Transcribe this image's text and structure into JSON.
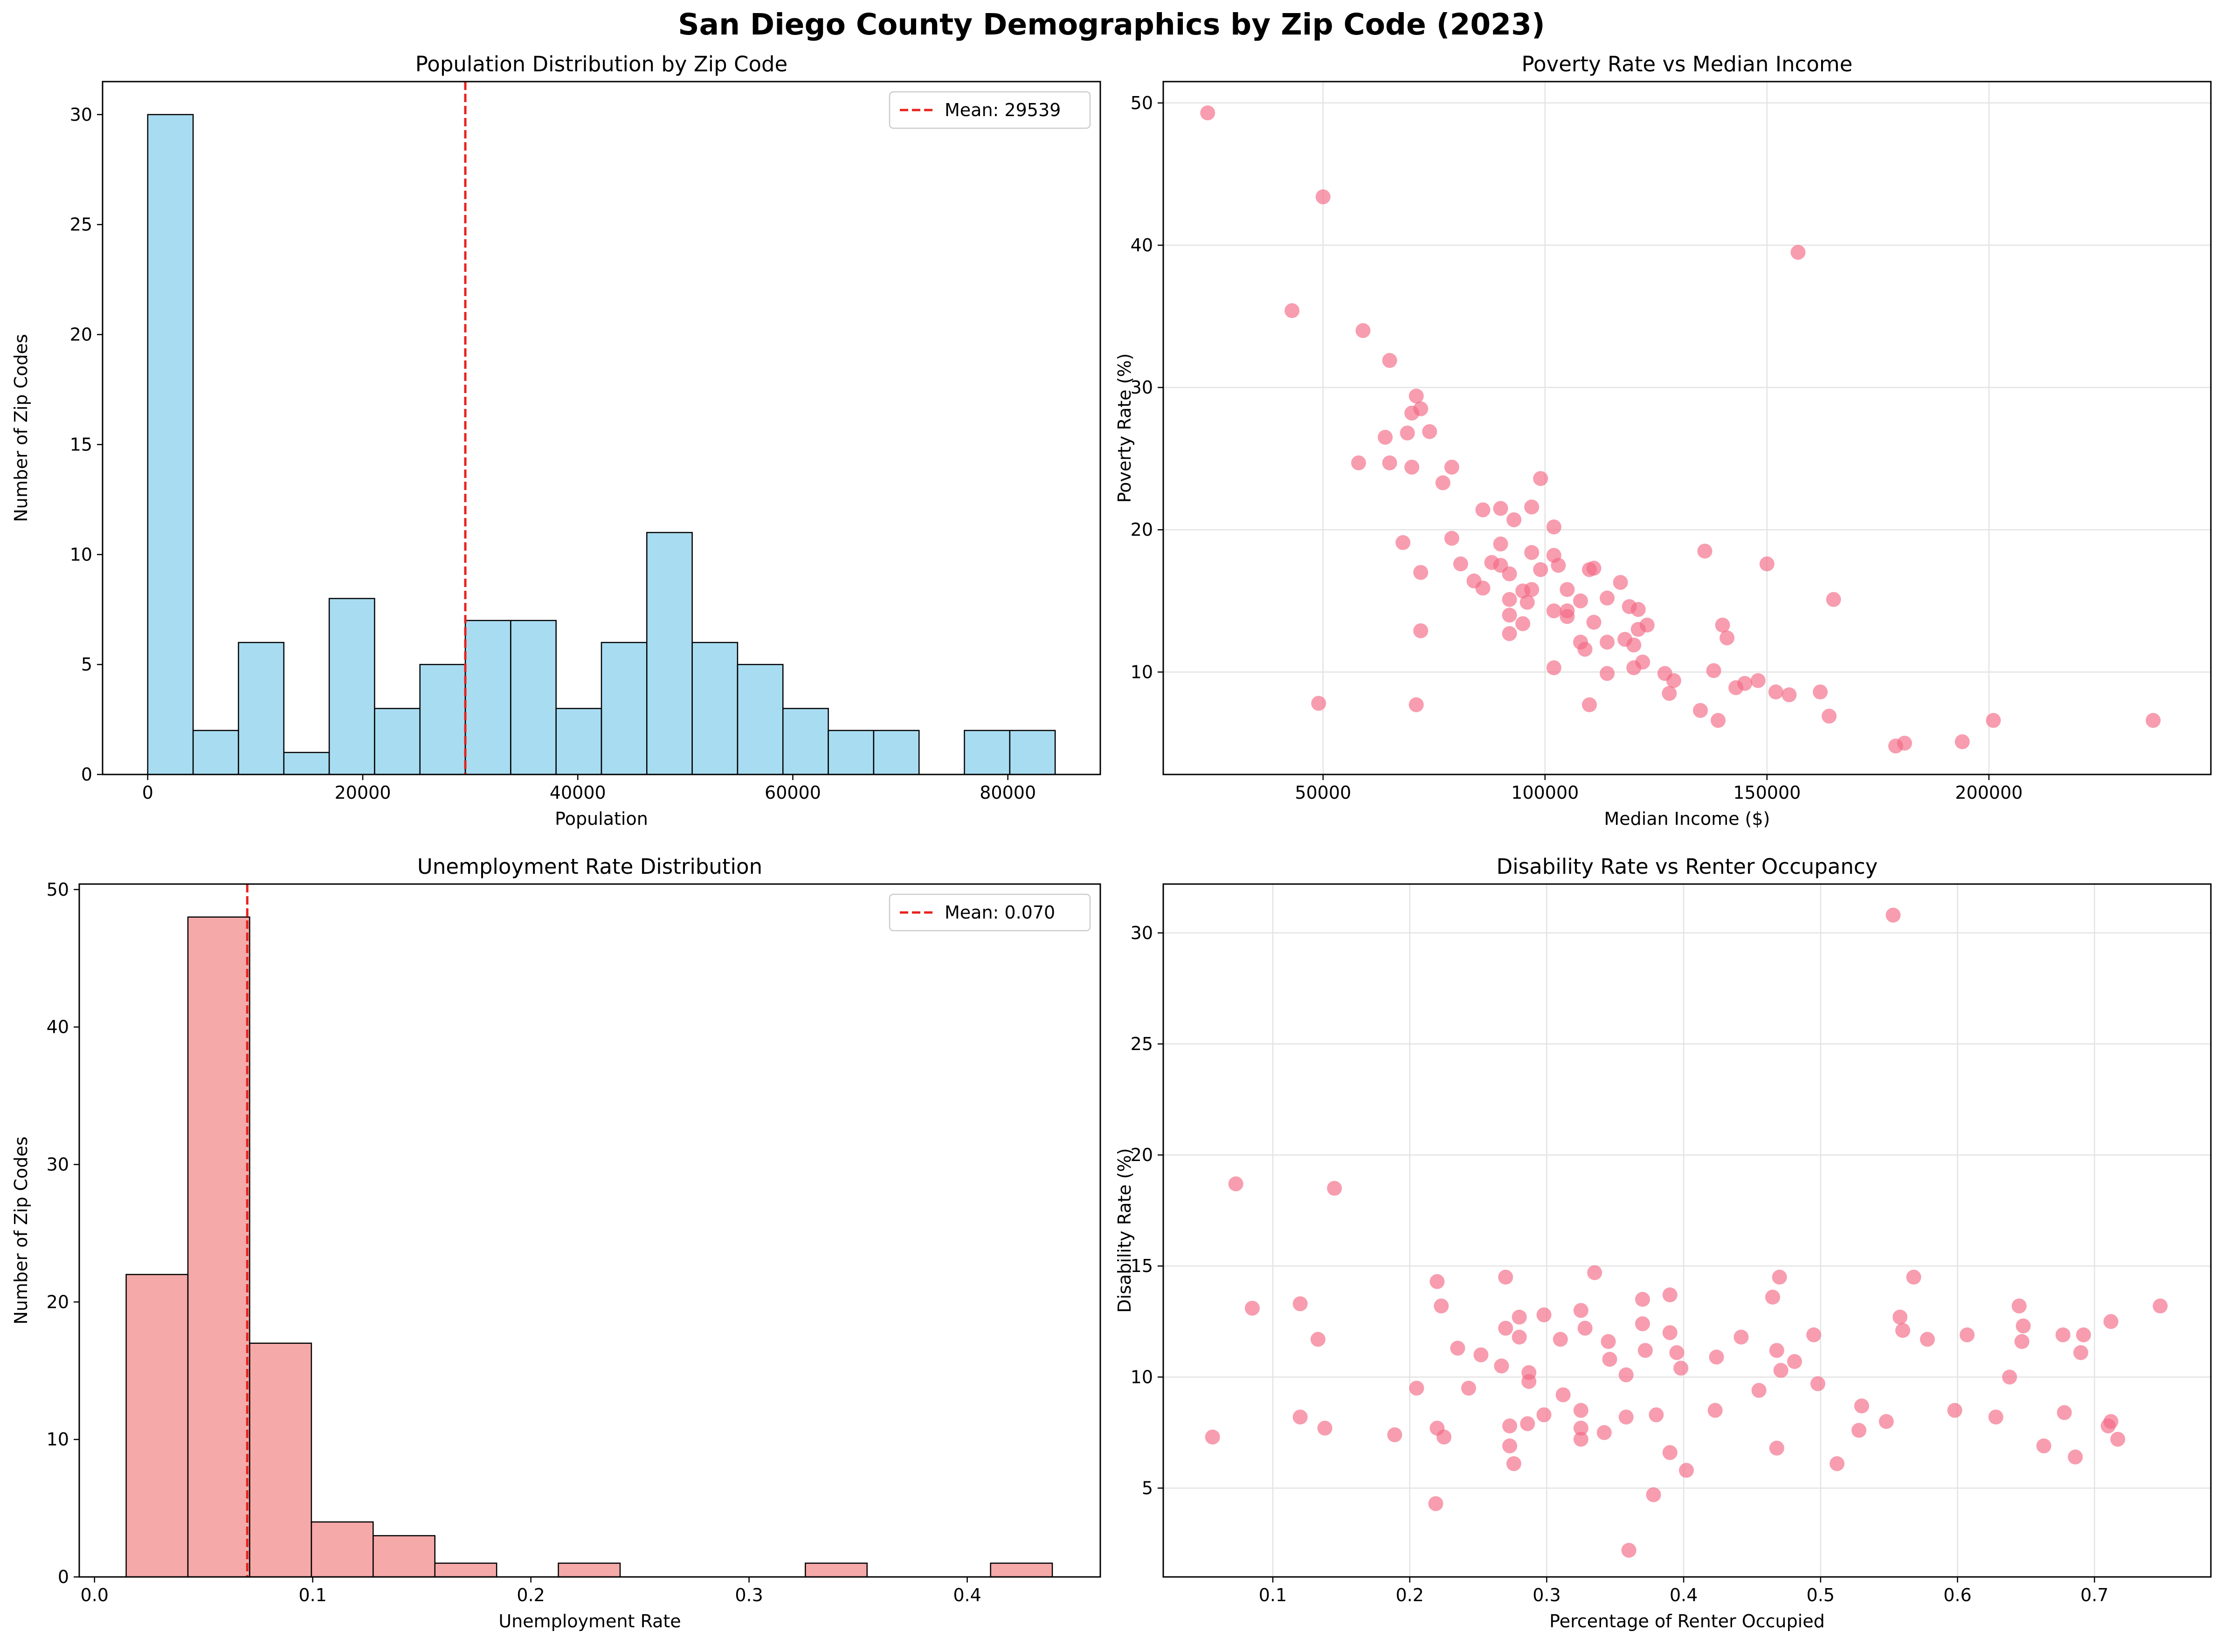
{
  "figure": {
    "title": "San Diego County Demographics by Zip Code (2023)"
  },
  "colors": {
    "hist_population": "#87CEEB",
    "hist_unemployment": "#F08080",
    "scatter_points": "#F26884",
    "mean_line": "#E8221E",
    "bar_edge": "#000000",
    "grid": "#E3E3E3"
  },
  "chart_data": [
    {
      "type": "bar",
      "title": "Population Distribution by Zip Code",
      "xlabel": "Population",
      "ylabel": "Number of Zip Codes",
      "xlim": [
        -4200,
        88600
      ],
      "ylim": [
        0,
        31.5
      ],
      "xticks": [
        0,
        20000,
        40000,
        60000,
        80000
      ],
      "yticks": [
        0,
        5,
        10,
        15,
        20,
        25,
        30
      ],
      "bins": [
        [
          0,
          4220
        ],
        [
          4220,
          8440
        ],
        [
          8440,
          12660
        ],
        [
          12660,
          16880
        ],
        [
          16880,
          21100
        ],
        [
          21100,
          25320
        ],
        [
          25320,
          29540
        ],
        [
          29540,
          33760
        ],
        [
          33760,
          37980
        ],
        [
          37980,
          42200
        ],
        [
          42200,
          46420
        ],
        [
          46420,
          50640
        ],
        [
          50640,
          54860
        ],
        [
          54860,
          59080
        ],
        [
          59080,
          63300
        ],
        [
          63300,
          67520
        ],
        [
          67520,
          71740
        ],
        [
          71740,
          75960
        ],
        [
          75960,
          80180
        ],
        [
          80180,
          84400
        ]
      ],
      "values": [
        30,
        2,
        6,
        1,
        8,
        3,
        5,
        7,
        7,
        3,
        6,
        11,
        6,
        5,
        3,
        2,
        2,
        0,
        2,
        2
      ],
      "mean": 29539,
      "legend": "Mean: 29539",
      "legend_position": "upper right",
      "grid": false
    },
    {
      "type": "scatter",
      "title": "Poverty Rate vs Median Income",
      "xlabel": "Median Income ($)",
      "ylabel": "Poverty Rate (%)",
      "xlim": [
        14000,
        250000
      ],
      "ylim": [
        2.8,
        51.5
      ],
      "xticks": [
        50000,
        100000,
        150000,
        200000
      ],
      "yticks": [
        10,
        20,
        30,
        40,
        50
      ],
      "grid": true,
      "points": [
        [
          24000,
          49.3
        ],
        [
          50000,
          43.4
        ],
        [
          157000,
          39.5
        ],
        [
          43000,
          35.4
        ],
        [
          59000,
          34
        ],
        [
          65000,
          31.9
        ],
        [
          71000,
          29.4
        ],
        [
          72000,
          28.5
        ],
        [
          70000,
          28.2
        ],
        [
          64000,
          26.5
        ],
        [
          69000,
          26.8
        ],
        [
          74000,
          26.9
        ],
        [
          58000,
          24.7
        ],
        [
          65000,
          24.7
        ],
        [
          70000,
          24.4
        ],
        [
          79000,
          24.4
        ],
        [
          99000,
          23.6
        ],
        [
          77000,
          23.3
        ],
        [
          86000,
          21.4
        ],
        [
          90000,
          21.5
        ],
        [
          97000,
          21.6
        ],
        [
          93000,
          20.7
        ],
        [
          102000,
          20.2
        ],
        [
          79000,
          19.4
        ],
        [
          68000,
          19.1
        ],
        [
          90000,
          19
        ],
        [
          97000,
          18.4
        ],
        [
          102000,
          18.2
        ],
        [
          136000,
          18.5
        ],
        [
          81000,
          17.6
        ],
        [
          88000,
          17.7
        ],
        [
          90000,
          17.5
        ],
        [
          103000,
          17.5
        ],
        [
          111000,
          17.3
        ],
        [
          110000,
          17.2
        ],
        [
          150000,
          17.6
        ],
        [
          72000,
          17
        ],
        [
          92000,
          16.9
        ],
        [
          99000,
          17.2
        ],
        [
          84000,
          16.4
        ],
        [
          117000,
          16.3
        ],
        [
          86000,
          15.9
        ],
        [
          95000,
          15.7
        ],
        [
          97000,
          15.8
        ],
        [
          105000,
          15.8
        ],
        [
          114000,
          15.2
        ],
        [
          92000,
          15.1
        ],
        [
          96000,
          14.9
        ],
        [
          108000,
          15
        ],
        [
          165000,
          15.1
        ],
        [
          119000,
          14.6
        ],
        [
          121000,
          14.4
        ],
        [
          102000,
          14.3
        ],
        [
          105000,
          14.3
        ],
        [
          92000,
          14
        ],
        [
          105000,
          13.9
        ],
        [
          111000,
          13.5
        ],
        [
          95000,
          13.4
        ],
        [
          123000,
          13.3
        ],
        [
          140000,
          13.3
        ],
        [
          72000,
          12.9
        ],
        [
          121000,
          13
        ],
        [
          92000,
          12.7
        ],
        [
          118000,
          12.3
        ],
        [
          108000,
          12.1
        ],
        [
          114000,
          12.1
        ],
        [
          141000,
          12.4
        ],
        [
          109000,
          11.6
        ],
        [
          120000,
          11.9
        ],
        [
          122000,
          10.7
        ],
        [
          102000,
          10.3
        ],
        [
          120000,
          10.3
        ],
        [
          114000,
          9.9
        ],
        [
          127000,
          9.9
        ],
        [
          138000,
          10.1
        ],
        [
          129000,
          9.4
        ],
        [
          148000,
          9.4
        ],
        [
          145000,
          9.2
        ],
        [
          143000,
          8.9
        ],
        [
          152000,
          8.6
        ],
        [
          155000,
          8.4
        ],
        [
          128000,
          8.5
        ],
        [
          162000,
          8.6
        ],
        [
          49000,
          7.8
        ],
        [
          71000,
          7.7
        ],
        [
          110000,
          7.7
        ],
        [
          135000,
          7.3
        ],
        [
          139000,
          6.6
        ],
        [
          164000,
          6.9
        ],
        [
          179000,
          4.8
        ],
        [
          181000,
          5
        ],
        [
          194000,
          5.1
        ],
        [
          201000,
          6.6
        ],
        [
          237000,
          6.6
        ]
      ]
    },
    {
      "type": "bar",
      "title": "Unemployment Rate Distribution",
      "xlabel": "Unemployment Rate",
      "ylabel": "Number of Zip Codes",
      "xlim": [
        -0.007,
        0.461
      ],
      "ylim": [
        0,
        50.4
      ],
      "xticks": [
        0.0,
        0.1,
        0.2,
        0.3,
        0.4
      ],
      "xtick_labels": [
        "0.0",
        "0.1",
        "0.2",
        "0.3",
        "0.4"
      ],
      "yticks": [
        0,
        10,
        20,
        30,
        40,
        50
      ],
      "bins": [
        [
          0.0145,
          0.0428
        ],
        [
          0.0428,
          0.0711
        ],
        [
          0.0711,
          0.0994
        ],
        [
          0.0994,
          0.1277
        ],
        [
          0.1277,
          0.156
        ],
        [
          0.156,
          0.1843
        ],
        [
          0.1843,
          0.2126
        ],
        [
          0.2126,
          0.2409
        ],
        [
          0.2409,
          0.2692
        ],
        [
          0.2692,
          0.2975
        ],
        [
          0.2975,
          0.3258
        ],
        [
          0.3258,
          0.3541
        ],
        [
          0.3541,
          0.3824
        ],
        [
          0.3824,
          0.4107
        ],
        [
          0.4107,
          0.439
        ]
      ],
      "values": [
        22,
        48,
        17,
        4,
        3,
        1,
        0,
        1,
        0,
        0,
        0,
        1,
        0,
        0,
        1
      ],
      "mean": 0.07,
      "legend": "Mean: 0.070",
      "legend_position": "upper right",
      "grid": false
    },
    {
      "type": "scatter",
      "title": "Disability Rate vs Renter Occupancy",
      "xlabel": "Percentage of Renter Occupied",
      "ylabel": "Disability Rate (%)",
      "xlim": [
        0.02,
        0.785
      ],
      "ylim": [
        1.0,
        32.2
      ],
      "xticks": [
        0.1,
        0.2,
        0.3,
        0.4,
        0.5,
        0.6,
        0.7
      ],
      "xtick_labels": [
        "0.1",
        "0.2",
        "0.3",
        "0.4",
        "0.5",
        "0.6",
        "0.7"
      ],
      "yticks": [
        5,
        10,
        15,
        20,
        25,
        30
      ],
      "grid": true,
      "points": [
        [
          0.553,
          30.8
        ],
        [
          0.073,
          18.7
        ],
        [
          0.145,
          18.5
        ],
        [
          0.335,
          14.7
        ],
        [
          0.27,
          14.5
        ],
        [
          0.47,
          14.5
        ],
        [
          0.568,
          14.5
        ],
        [
          0.22,
          14.3
        ],
        [
          0.465,
          13.6
        ],
        [
          0.37,
          13.5
        ],
        [
          0.39,
          13.7
        ],
        [
          0.12,
          13.3
        ],
        [
          0.085,
          13.1
        ],
        [
          0.223,
          13.2
        ],
        [
          0.325,
          13.0
        ],
        [
          0.645,
          13.2
        ],
        [
          0.748,
          13.2
        ],
        [
          0.28,
          12.7
        ],
        [
          0.298,
          12.8
        ],
        [
          0.558,
          12.7
        ],
        [
          0.712,
          12.5
        ],
        [
          0.27,
          12.2
        ],
        [
          0.328,
          12.2
        ],
        [
          0.37,
          12.4
        ],
        [
          0.56,
          12.1
        ],
        [
          0.648,
          12.3
        ],
        [
          0.133,
          11.7
        ],
        [
          0.28,
          11.8
        ],
        [
          0.31,
          11.7
        ],
        [
          0.345,
          11.6
        ],
        [
          0.39,
          12.0
        ],
        [
          0.442,
          11.8
        ],
        [
          0.495,
          11.9
        ],
        [
          0.578,
          11.7
        ],
        [
          0.607,
          11.9
        ],
        [
          0.647,
          11.6
        ],
        [
          0.677,
          11.9
        ],
        [
          0.692,
          11.9
        ],
        [
          0.235,
          11.3
        ],
        [
          0.252,
          11.0
        ],
        [
          0.372,
          11.2
        ],
        [
          0.395,
          11.1
        ],
        [
          0.468,
          11.2
        ],
        [
          0.346,
          10.8
        ],
        [
          0.424,
          10.9
        ],
        [
          0.481,
          10.7
        ],
        [
          0.69,
          11.1
        ],
        [
          0.267,
          10.5
        ],
        [
          0.287,
          10.2
        ],
        [
          0.398,
          10.4
        ],
        [
          0.471,
          10.3
        ],
        [
          0.205,
          9.5
        ],
        [
          0.243,
          9.5
        ],
        [
          0.287,
          9.8
        ],
        [
          0.358,
          10.1
        ],
        [
          0.455,
          9.4
        ],
        [
          0.498,
          9.7
        ],
        [
          0.638,
          10.0
        ],
        [
          0.312,
          9.2
        ],
        [
          0.325,
          8.5
        ],
        [
          0.423,
          8.5
        ],
        [
          0.53,
          8.7
        ],
        [
          0.598,
          8.5
        ],
        [
          0.12,
          8.2
        ],
        [
          0.298,
          8.3
        ],
        [
          0.358,
          8.2
        ],
        [
          0.38,
          8.3
        ],
        [
          0.548,
          8.0
        ],
        [
          0.628,
          8.2
        ],
        [
          0.678,
          8.4
        ],
        [
          0.712,
          8.0
        ],
        [
          0.138,
          7.7
        ],
        [
          0.189,
          7.4
        ],
        [
          0.22,
          7.7
        ],
        [
          0.273,
          7.8
        ],
        [
          0.286,
          7.9
        ],
        [
          0.325,
          7.7
        ],
        [
          0.342,
          7.5
        ],
        [
          0.528,
          7.6
        ],
        [
          0.71,
          7.8
        ],
        [
          0.056,
          7.3
        ],
        [
          0.225,
          7.3
        ],
        [
          0.325,
          7.2
        ],
        [
          0.717,
          7.2
        ],
        [
          0.273,
          6.9
        ],
        [
          0.468,
          6.8
        ],
        [
          0.663,
          6.9
        ],
        [
          0.276,
          6.1
        ],
        [
          0.39,
          6.6
        ],
        [
          0.512,
          6.1
        ],
        [
          0.686,
          6.4
        ],
        [
          0.402,
          5.8
        ],
        [
          0.378,
          4.7
        ],
        [
          0.219,
          4.3
        ],
        [
          0.36,
          2.2
        ]
      ]
    }
  ]
}
